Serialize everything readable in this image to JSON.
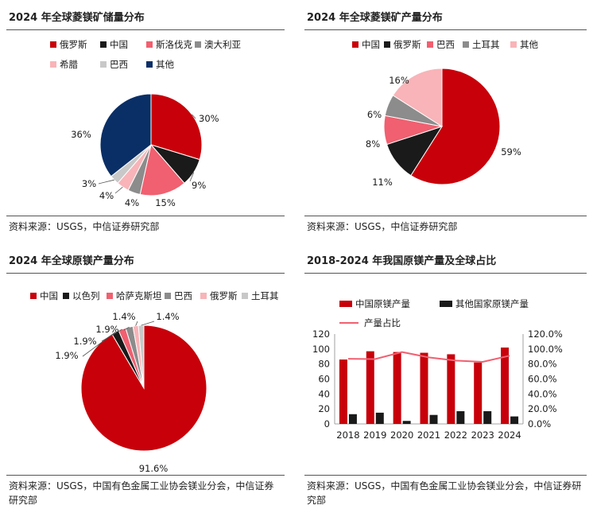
{
  "colors": {
    "china_red": "#c8000a",
    "black": "#1a1a1a",
    "pink": "#f06070",
    "gray": "#8c8c8c",
    "lightpink": "#f8b4b8",
    "lightgray": "#c8c8c8",
    "navy": "#0a2f66",
    "line": "#f06070"
  },
  "panels": [
    {
      "title": "2024 年全球菱镁矿储量分布",
      "source": "资料来源：USGS，中信证券研究部"
    },
    {
      "title": "2024 年全球菱镁矿产量分布",
      "source": "资料来源：USGS，中信证券研究部"
    },
    {
      "title": "2024 年全球原镁产量分布",
      "source": "资料来源：USGS，中国有色金属工业协会镁业分会，中信证券研究部"
    },
    {
      "title": "2018-2024 年我国原镁产量及全球占比",
      "source": "资料来源：USGS，中国有色金属工业协会镁业分会，中信证券研究部"
    }
  ],
  "chart_data": [
    {
      "type": "pie",
      "title": "2024 年全球菱镁矿储量分布",
      "slices": [
        {
          "name": "俄罗斯",
          "value": 30,
          "label": "30%",
          "color": "#c8000a"
        },
        {
          "name": "中国",
          "value": 9,
          "label": "9%",
          "color": "#1a1a1a"
        },
        {
          "name": "斯洛伐克",
          "value": 15,
          "label": "15%",
          "color": "#f06070"
        },
        {
          "name": "澳大利亚",
          "value": 4,
          "label": "4%",
          "color": "#8c8c8c"
        },
        {
          "name": "希腊",
          "value": 4,
          "label": "4%",
          "color": "#f8b4b8"
        },
        {
          "name": "巴西",
          "value": 3,
          "label": "3%",
          "color": "#c8c8c8"
        },
        {
          "name": "其他",
          "value": 36,
          "label": "36%",
          "color": "#0a2f66"
        }
      ]
    },
    {
      "type": "pie",
      "title": "2024 年全球菱镁矿产量分布",
      "slices": [
        {
          "name": "中国",
          "value": 59,
          "label": "59%",
          "color": "#c8000a"
        },
        {
          "name": "俄罗斯",
          "value": 11,
          "label": "11%",
          "color": "#1a1a1a"
        },
        {
          "name": "巴西",
          "value": 8,
          "label": "8%",
          "color": "#f06070"
        },
        {
          "name": "土耳其",
          "value": 6,
          "label": "6%",
          "color": "#8c8c8c"
        },
        {
          "name": "其他",
          "value": 16,
          "label": "16%",
          "color": "#f8b4b8"
        }
      ]
    },
    {
      "type": "pie",
      "title": "2024 年全球原镁产量分布",
      "slices": [
        {
          "name": "中国",
          "value": 91.6,
          "label": "91.6%",
          "color": "#c8000a"
        },
        {
          "name": "以色列",
          "value": 1.9,
          "label": "1.9%",
          "color": "#1a1a1a"
        },
        {
          "name": "哈萨克斯坦",
          "value": 1.9,
          "label": "1.9%",
          "color": "#f06070"
        },
        {
          "name": "巴西",
          "value": 1.9,
          "label": "1.9%",
          "color": "#8c8c8c"
        },
        {
          "name": "俄罗斯",
          "value": 1.4,
          "label": "1.4%",
          "color": "#f8b4b8"
        },
        {
          "name": "土耳其",
          "value": 1.4,
          "label": "1.4%",
          "color": "#c8c8c8"
        }
      ]
    },
    {
      "type": "bar",
      "title": "2018-2024 年我国原镁产量及全球占比",
      "categories": [
        "2018",
        "2019",
        "2020",
        "2021",
        "2022",
        "2023",
        "2024"
      ],
      "series": [
        {
          "name": "中国原镁产量",
          "type": "bar",
          "axis": "left",
          "color": "#c8000a",
          "values": [
            86,
            97,
            96,
            95,
            93,
            82,
            102
          ]
        },
        {
          "name": "其他国家原镁产量",
          "type": "bar",
          "axis": "left",
          "color": "#1a1a1a",
          "values": [
            13,
            15,
            4,
            12,
            17,
            17,
            10
          ]
        },
        {
          "name": "产量占比",
          "type": "line",
          "axis": "right",
          "color": "#f06070",
          "values": [
            86.9,
            86.6,
            96.0,
            88.8,
            84.5,
            82.8,
            91.1
          ]
        }
      ],
      "ylim": [
        0,
        120
      ],
      "yticks": [
        "0",
        "20",
        "40",
        "60",
        "80",
        "100",
        "120"
      ],
      "y2lim": [
        0,
        120
      ],
      "y2ticks": [
        "0.0%",
        "20.0%",
        "40.0%",
        "60.0%",
        "80.0%",
        "100.0%",
        "120.0%"
      ],
      "legend": "top"
    }
  ]
}
